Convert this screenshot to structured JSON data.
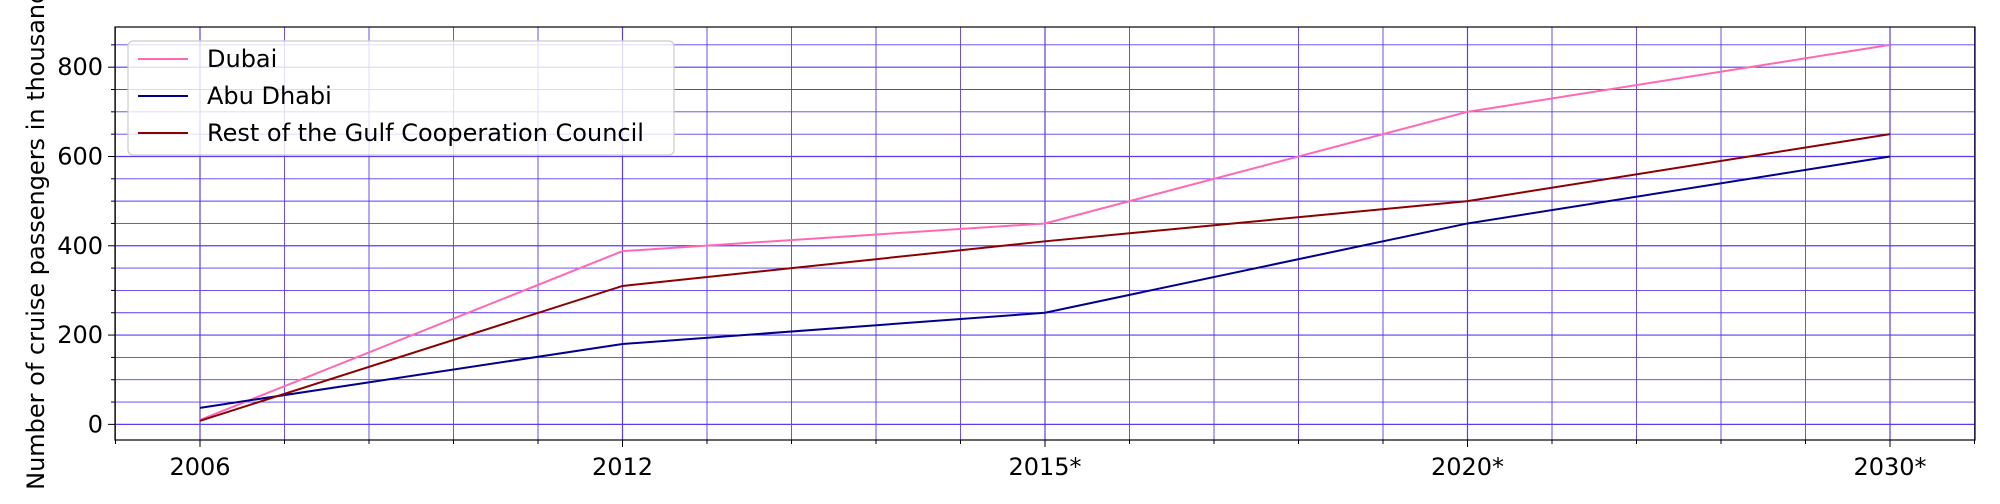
{
  "chart_data": {
    "type": "line",
    "title": "",
    "xlabel": "",
    "ylabel": "Number of cruise passengers in thousands",
    "categories": [
      "2006",
      "2012",
      "2015*",
      "2020*",
      "2030*"
    ],
    "ylim": [
      -35,
      890
    ],
    "y_ticks": [
      0,
      200,
      400,
      600,
      800
    ],
    "y_tick_labels": [
      "0",
      "200",
      "400",
      "600",
      "800"
    ],
    "grid": true,
    "minor_grid": true,
    "legend_position": "top-left",
    "series": [
      {
        "name": "Dubai",
        "color": "#ff69b4",
        "values": [
          10,
          388,
          450,
          700,
          850
        ]
      },
      {
        "name": "Abu Dhabi",
        "color": "#00008b",
        "values": [
          37,
          180,
          250,
          450,
          600
        ]
      },
      {
        "name": "Rest of the Gulf Cooperation Council",
        "color": "#8b0000",
        "values": [
          8,
          310,
          410,
          500,
          650
        ]
      }
    ],
    "colors": {
      "grid": "#5a3cf0",
      "axes": "#000000"
    }
  }
}
